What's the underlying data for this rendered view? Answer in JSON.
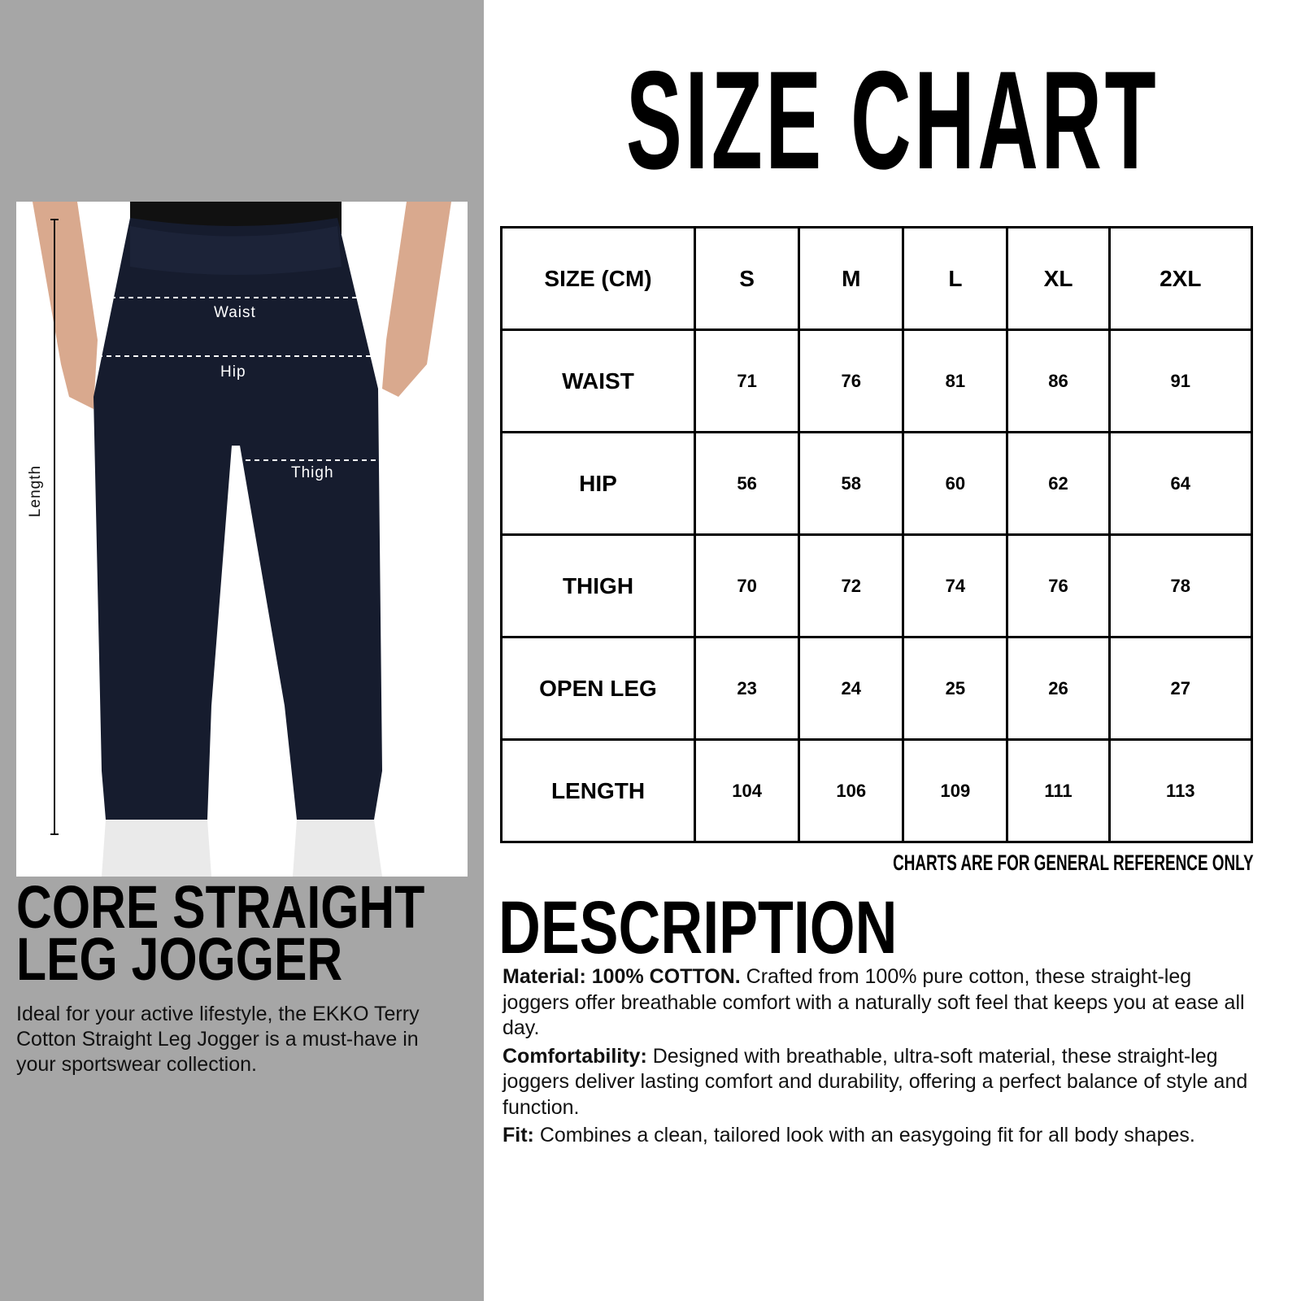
{
  "product": {
    "title_line1": "CORE STRAIGHT",
    "title_line2": "LEG JOGGER",
    "summary": "Ideal for your active lifestyle, the EKKO Terry Cotton Straight Leg Jogger is a must-have in your sportswear collection.",
    "photo_labels": {
      "waist": "Waist",
      "hip": "Hip",
      "thigh": "Thigh",
      "length": "Length"
    }
  },
  "size_chart": {
    "title": "SIZE CHART",
    "header": [
      "SIZE (CM)",
      "S",
      "M",
      "L",
      "XL",
      "2XL"
    ],
    "rows": [
      {
        "label": "WAIST",
        "values": [
          "71",
          "76",
          "81",
          "86",
          "91"
        ]
      },
      {
        "label": "HIP",
        "values": [
          "56",
          "58",
          "60",
          "62",
          "64"
        ]
      },
      {
        "label": "THIGH",
        "values": [
          "70",
          "72",
          "74",
          "76",
          "78"
        ]
      },
      {
        "label": "OPEN LEG",
        "values": [
          "23",
          "24",
          "25",
          "26",
          "27"
        ]
      },
      {
        "label": "LENGTH",
        "values": [
          "104",
          "106",
          "109",
          "111",
          "113"
        ]
      }
    ],
    "disclaimer": "CHARTS ARE FOR GENERAL REFERENCE ONLY"
  },
  "description": {
    "title": "DESCRIPTION",
    "items": [
      {
        "label": "Material: 100% COTTON.",
        "text": " Crafted from 100% pure cotton, these straight-leg joggers offer breathable comfort with a naturally soft feel that keeps you at ease all day."
      },
      {
        "label": "Comfortability:",
        "text": " Designed with breathable, ultra-soft material, these straight-leg joggers deliver lasting comfort and durability, offering a perfect balance of style and function."
      },
      {
        "label": "Fit:",
        "text": " Combines a clean, tailored look with an easygoing fit for all body shapes."
      }
    ]
  },
  "colors": {
    "left_panel": "#a6a6a6",
    "pants": "#161c2e"
  }
}
